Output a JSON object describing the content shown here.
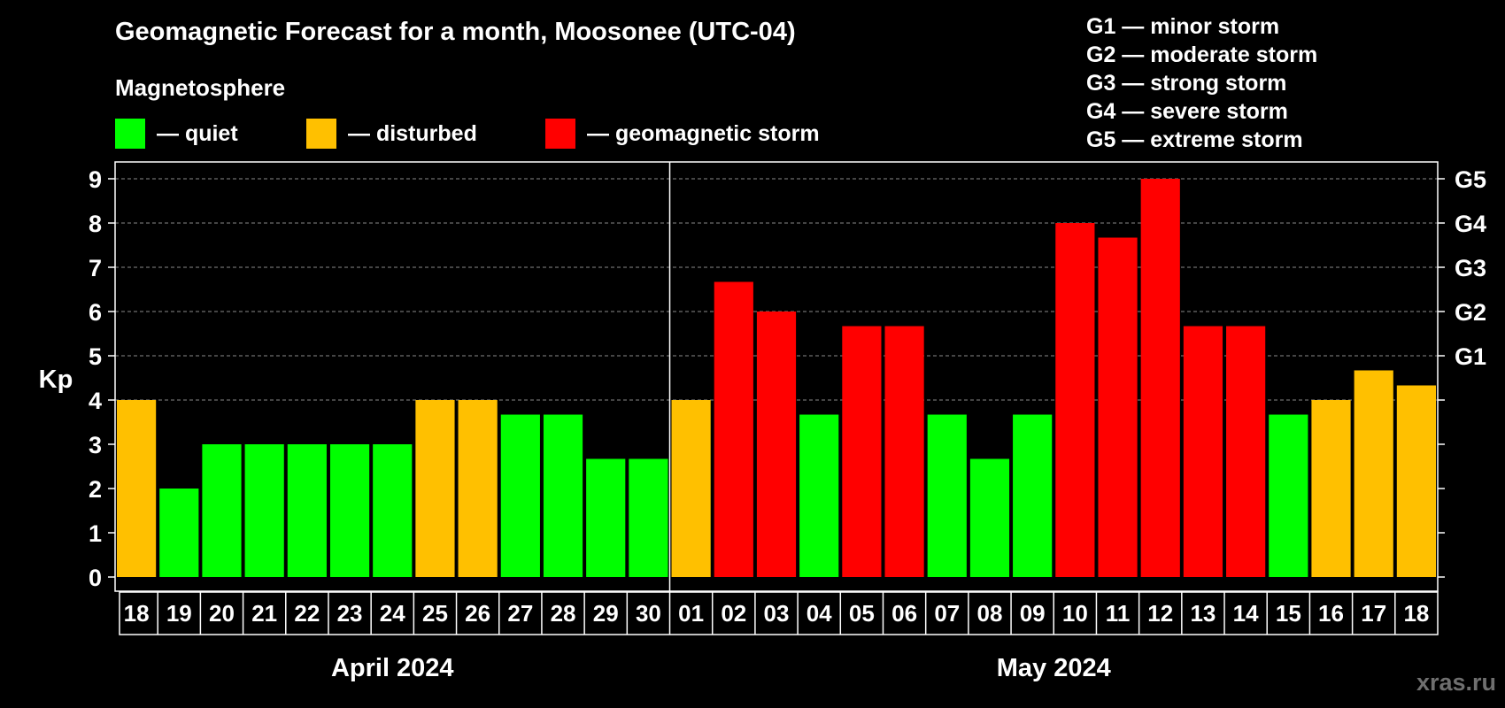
{
  "title": "Geomagnetic Forecast for a month, Moosonee (UTC-04)",
  "subtitle": "Magnetosphere",
  "legend": [
    {
      "label": "— quiet",
      "color": "#00ff00"
    },
    {
      "label": "— disturbed",
      "color": "#ffc000"
    },
    {
      "label": "— geomagnetic storm",
      "color": "#ff0000"
    }
  ],
  "storm_scale": [
    "G1 — minor storm",
    "G2 — moderate storm",
    "G3 — strong storm",
    "G4 — severe storm",
    "G5 — extreme storm"
  ],
  "watermark": "xras.ru",
  "colors": {
    "quiet": "#00ff00",
    "disturbed": "#ffc000",
    "storm": "#ff0000"
  },
  "chart_data": {
    "type": "bar",
    "title": "Geomagnetic Forecast for a month, Moosonee (UTC-04)",
    "ylabel": "Kp",
    "ylim": [
      0,
      9
    ],
    "yticks": [
      0,
      1,
      2,
      3,
      4,
      5,
      6,
      7,
      8,
      9
    ],
    "right_axis": [
      {
        "kp": 5,
        "label": "G1"
      },
      {
        "kp": 6,
        "label": "G2"
      },
      {
        "kp": 7,
        "label": "G3"
      },
      {
        "kp": 8,
        "label": "G4"
      },
      {
        "kp": 9,
        "label": "G5"
      }
    ],
    "categories": [
      "18",
      "19",
      "20",
      "21",
      "22",
      "23",
      "24",
      "25",
      "26",
      "27",
      "28",
      "29",
      "30",
      "01",
      "02",
      "03",
      "04",
      "05",
      "06",
      "07",
      "08",
      "09",
      "10",
      "11",
      "12",
      "13",
      "14",
      "15",
      "16",
      "17",
      "18"
    ],
    "values": [
      4,
      2,
      3,
      3,
      3,
      3,
      3,
      4,
      4,
      3.67,
      3.67,
      2.67,
      2.67,
      4,
      6.67,
      6,
      3.67,
      5.67,
      5.67,
      3.67,
      2.67,
      3.67,
      8,
      7.67,
      9,
      5.67,
      5.67,
      3.67,
      4,
      4.67,
      4.33
    ],
    "levels": [
      "disturbed",
      "quiet",
      "quiet",
      "quiet",
      "quiet",
      "quiet",
      "quiet",
      "disturbed",
      "disturbed",
      "quiet",
      "quiet",
      "quiet",
      "quiet",
      "disturbed",
      "storm",
      "storm",
      "quiet",
      "storm",
      "storm",
      "quiet",
      "quiet",
      "quiet",
      "storm",
      "storm",
      "storm",
      "storm",
      "storm",
      "quiet",
      "disturbed",
      "disturbed",
      "disturbed"
    ],
    "months": [
      {
        "label": "April 2024",
        "count": 13
      },
      {
        "label": "May 2024",
        "count": 18
      }
    ],
    "grid": true
  }
}
